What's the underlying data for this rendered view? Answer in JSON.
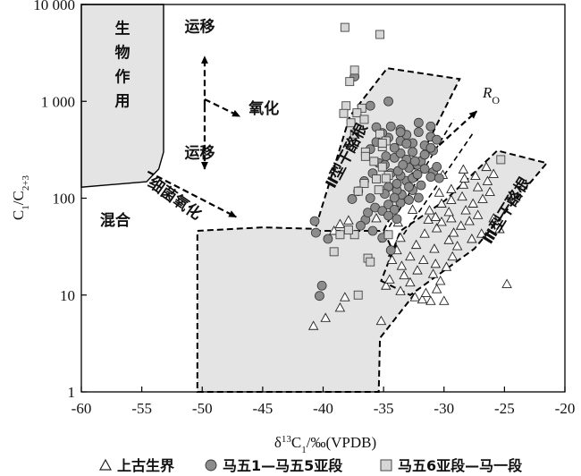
{
  "chart_data": {
    "type": "scatter",
    "title": "",
    "xlabel": "δ13C1/‰(VPDB)",
    "ylabel": "C1/C2+3",
    "xlim": [
      -60,
      -20
    ],
    "ylim": [
      1,
      10000
    ],
    "y_scale": "log",
    "x_ticks": [
      "-60",
      "-55",
      "-50",
      "-45",
      "-40",
      "-35",
      "-30",
      "-25",
      "-20"
    ],
    "y_ticks": [
      "1",
      "10",
      "100",
      "1 000",
      "10 000"
    ],
    "legend_position": "bottom",
    "colors": {
      "circle": "#8c8c8c",
      "square": "#d6d6d6",
      "region": "#e4e4e4"
    },
    "legend": [
      {
        "marker": "triangle",
        "text": "上古生界"
      },
      {
        "marker": "circle",
        "text": "马五1—马五5亚段"
      },
      {
        "marker": "square",
        "text": "马五6亚段—马一段"
      }
    ],
    "regions": [
      {
        "label": "生物作用",
        "polygon": [
          [
            -60,
            10000
          ],
          [
            -53.2,
            10000
          ],
          [
            -53.2,
            300
          ],
          [
            -53.6,
            200
          ],
          [
            -54.6,
            148
          ],
          [
            -60,
            130
          ]
        ]
      },
      {
        "label": "混合",
        "polygon": [
          [
            -50.4,
            1
          ],
          [
            -35.4,
            1
          ],
          [
            -35.3,
            3.6
          ],
          [
            -32.5,
            10
          ],
          [
            -35,
            46
          ],
          [
            -45,
            50
          ],
          [
            -50.4,
            46
          ]
        ]
      },
      {
        "label": "Ⅱ型干酪根",
        "polygon": [
          [
            -40.7,
            46
          ],
          [
            -35,
            46
          ],
          [
            -28.7,
            1700
          ],
          [
            -34.7,
            2200
          ],
          [
            -37.8,
            700
          ]
        ]
      },
      {
        "label": "Ⅲ型干酪根",
        "polygon": [
          [
            -35.2,
            14
          ],
          [
            -32.8,
            10
          ],
          [
            -27.5,
            30
          ],
          [
            -21.5,
            230
          ],
          [
            -25.6,
            310
          ],
          [
            -29.9,
            95
          ],
          [
            -33.6,
            46
          ]
        ]
      }
    ],
    "annotations": [
      {
        "text": "运移",
        "x": -50.2,
        "y": 5200
      },
      {
        "text": "氧化",
        "x": -44.9,
        "y": 750
      },
      {
        "text": "运移",
        "x": -50.2,
        "y": 260
      },
      {
        "text": "混合",
        "x": -57.2,
        "y": 52
      },
      {
        "text": "细菌氧化",
        "x": -52.5,
        "y": 90,
        "rotate": 35
      },
      {
        "text": "Ⅱ型干酪根",
        "x": -37.7,
        "y": 260,
        "rotate": -62
      },
      {
        "text": "Ⅲ型干酪根",
        "x": -24.5,
        "y": 70,
        "rotate": -58
      },
      {
        "text": "RO",
        "x": -26.8,
        "y": 1100
      }
    ],
    "arrows": [
      {
        "from": [
          -49.8,
          900
        ],
        "to": [
          -49.8,
          2900
        ],
        "dashed": true
      },
      {
        "from": [
          -49.8,
          900
        ],
        "to": [
          -49.8,
          200
        ],
        "dashed": true
      },
      {
        "from": [
          -49.8,
          1050
        ],
        "to": [
          -46.9,
          700
        ],
        "dashed": true
      },
      {
        "from": [
          -54.5,
          188
        ],
        "to": [
          -47.2,
          64
        ],
        "dashed": true
      },
      {
        "from": [
          -32.2,
          220
        ],
        "to": [
          -27.3,
          790
        ],
        "dashed": true
      }
    ],
    "dashed_guides": [
      [
        [
          -35.3,
          35
        ],
        [
          -29.2,
          650
        ]
      ],
      [
        [
          -34.6,
          25
        ],
        [
          -27.6,
          470
        ]
      ]
    ],
    "series": [
      {
        "name": "上古生界",
        "marker": "triangle",
        "points": [
          [
            -40.8,
            4.8
          ],
          [
            -39.8,
            5.8
          ],
          [
            -38.6,
            7.4
          ],
          [
            -38.2,
            9.5
          ],
          [
            -35.2,
            5.4
          ],
          [
            -34.8,
            12.5
          ],
          [
            -34.5,
            14.5
          ],
          [
            -33.6,
            11
          ],
          [
            -33.3,
            16
          ],
          [
            -32.8,
            13.5
          ],
          [
            -32.4,
            9.5
          ],
          [
            -31.8,
            9
          ],
          [
            -31.5,
            10.5
          ],
          [
            -31.1,
            8.7
          ],
          [
            -30.6,
            11.5
          ],
          [
            -30.3,
            14
          ],
          [
            -30.9,
            16.5
          ],
          [
            -32.2,
            18
          ],
          [
            -33.5,
            20
          ],
          [
            -34.3,
            23
          ],
          [
            -33.9,
            29
          ],
          [
            -32.8,
            25
          ],
          [
            -31.7,
            23
          ],
          [
            -30.7,
            21
          ],
          [
            -29.8,
            19.5
          ],
          [
            -29.3,
            25
          ],
          [
            -28.9,
            32
          ],
          [
            -29.6,
            37
          ],
          [
            -30.8,
            30
          ],
          [
            -32.3,
            33
          ],
          [
            -33.6,
            39
          ],
          [
            -31.6,
            43
          ],
          [
            -30.6,
            49
          ],
          [
            -29.2,
            44
          ],
          [
            -28.6,
            52
          ],
          [
            -27.9,
            58
          ],
          [
            -27.2,
            67
          ],
          [
            -28.2,
            75
          ],
          [
            -29.4,
            62
          ],
          [
            -30.2,
            57
          ],
          [
            -31.2,
            75
          ],
          [
            -30.2,
            88
          ],
          [
            -29.4,
            96
          ],
          [
            -28.5,
            104
          ],
          [
            -27.6,
            88
          ],
          [
            -26.8,
            98
          ],
          [
            -26.2,
            116
          ],
          [
            -27.2,
            130
          ],
          [
            -28.4,
            138
          ],
          [
            -29.4,
            124
          ],
          [
            -30.4,
            114
          ],
          [
            -28.3,
            160
          ],
          [
            -27.4,
            170
          ],
          [
            -26.4,
            150
          ],
          [
            -25.9,
            178
          ],
          [
            -26.5,
            210
          ],
          [
            -28.4,
            198
          ],
          [
            -30.1,
            174
          ],
          [
            -32.6,
            76
          ],
          [
            -35.6,
            62
          ],
          [
            -37.9,
            59
          ],
          [
            -38.6,
            54
          ],
          [
            -39.1,
            46
          ],
          [
            -30,
            8.7
          ],
          [
            -24.8,
            13
          ],
          [
            -25.4,
            48
          ],
          [
            -25.9,
            62
          ],
          [
            -26.9,
            43
          ],
          [
            -27.7,
            38
          ],
          [
            -31.3,
            60
          ],
          [
            -33.8,
            56
          ],
          [
            -30.7,
            64
          ],
          [
            -29.6,
            72
          ]
        ]
      },
      {
        "name": "马五1—马五5亚段",
        "marker": "circle",
        "points": [
          [
            -40.3,
            9.8
          ],
          [
            -40.1,
            12.5
          ],
          [
            -40.7,
            58
          ],
          [
            -39.6,
            38
          ],
          [
            -40.6,
            44
          ],
          [
            -36.5,
            60
          ],
          [
            -36.9,
            52
          ],
          [
            -36.3,
            71
          ],
          [
            -35.7,
            80
          ],
          [
            -35.1,
            74
          ],
          [
            -34.6,
            86
          ],
          [
            -34.1,
            76
          ],
          [
            -33.6,
            90
          ],
          [
            -32.9,
            96
          ],
          [
            -33.5,
            109
          ],
          [
            -33.9,
            121
          ],
          [
            -34.6,
            131
          ],
          [
            -33.9,
            141
          ],
          [
            -33.1,
            151
          ],
          [
            -32.6,
            161
          ],
          [
            -33.6,
            171
          ],
          [
            -34.4,
            181
          ],
          [
            -33.8,
            191
          ],
          [
            -32.9,
            206
          ],
          [
            -32.2,
            221
          ],
          [
            -31.9,
            241
          ],
          [
            -33.1,
            251
          ],
          [
            -34.1,
            261
          ],
          [
            -34.8,
            271
          ],
          [
            -33.6,
            291
          ],
          [
            -32.6,
            301
          ],
          [
            -31.6,
            281
          ],
          [
            -30.9,
            311
          ],
          [
            -31.6,
            351
          ],
          [
            -32.6,
            371
          ],
          [
            -33.6,
            391
          ],
          [
            -34.6,
            421
          ],
          [
            -33.1,
            451
          ],
          [
            -32.1,
            481
          ],
          [
            -31.1,
            431
          ],
          [
            -30.6,
            401
          ],
          [
            -33.6,
            511
          ],
          [
            -34.4,
            551
          ],
          [
            -32.1,
            601
          ],
          [
            -31.1,
            551
          ],
          [
            -35.1,
            471
          ],
          [
            -35.6,
            381
          ],
          [
            -36.1,
            321
          ],
          [
            -35.4,
            231
          ],
          [
            -35.9,
            181
          ],
          [
            -36.6,
            150
          ],
          [
            -37.1,
            118
          ],
          [
            -37.6,
            98
          ],
          [
            -36.1,
            100
          ],
          [
            -34.9,
            111
          ],
          [
            -34.1,
            101
          ],
          [
            -32.6,
            121
          ],
          [
            -31.9,
            136
          ],
          [
            -32.2,
            176
          ],
          [
            -31.6,
            201
          ],
          [
            -30.9,
            186
          ],
          [
            -31.1,
            166
          ],
          [
            -30.4,
            161
          ],
          [
            -30.6,
            211
          ],
          [
            -32.9,
            131
          ],
          [
            -34.6,
            66
          ],
          [
            -33.9,
            61
          ],
          [
            -35.9,
            46
          ],
          [
            -35.1,
            39
          ],
          [
            -34.4,
            29
          ],
          [
            -37.4,
            1800
          ],
          [
            -36.1,
            900
          ],
          [
            -34.6,
            1000
          ],
          [
            -33.6,
            481
          ],
          [
            -31.1,
            331
          ],
          [
            -35.6,
            541
          ],
          [
            -34.1,
            331
          ],
          [
            -33.1,
            366
          ],
          [
            -32.4,
            241
          ],
          [
            -34.9,
            221
          ],
          [
            -33.4,
            221
          ],
          [
            -32.1,
            101
          ]
        ]
      },
      {
        "name": "马五6亚段—马一段",
        "marker": "square",
        "points": [
          [
            -38.2,
            5800
          ],
          [
            -35.3,
            4900
          ],
          [
            -37.4,
            2100
          ],
          [
            -37.8,
            1600
          ],
          [
            -38.1,
            900
          ],
          [
            -38.3,
            750
          ],
          [
            -36.8,
            850
          ],
          [
            -37.2,
            760
          ],
          [
            -36.6,
            650
          ],
          [
            -37.4,
            460
          ],
          [
            -37.7,
            600
          ],
          [
            -36.5,
            300
          ],
          [
            -35.3,
            460
          ],
          [
            -35.1,
            340
          ],
          [
            -34.8,
            390
          ],
          [
            -36.5,
            270
          ],
          [
            -35.8,
            240
          ],
          [
            -35.1,
            210
          ],
          [
            -34.6,
            172
          ],
          [
            -35.6,
            158
          ],
          [
            -36.6,
            142
          ],
          [
            -37.1,
            118
          ],
          [
            -39.1,
            28
          ],
          [
            -37.1,
            10
          ],
          [
            -36.3,
            24
          ],
          [
            -36.1,
            22
          ],
          [
            -38.6,
            42
          ],
          [
            -37.4,
            42
          ],
          [
            -34.6,
            42
          ],
          [
            -25.3,
            250
          ],
          [
            -34.8,
            160
          ],
          [
            -35.4,
            122
          ],
          [
            -35.1,
            370
          ],
          [
            -37.9,
            47
          ]
        ]
      }
    ]
  }
}
